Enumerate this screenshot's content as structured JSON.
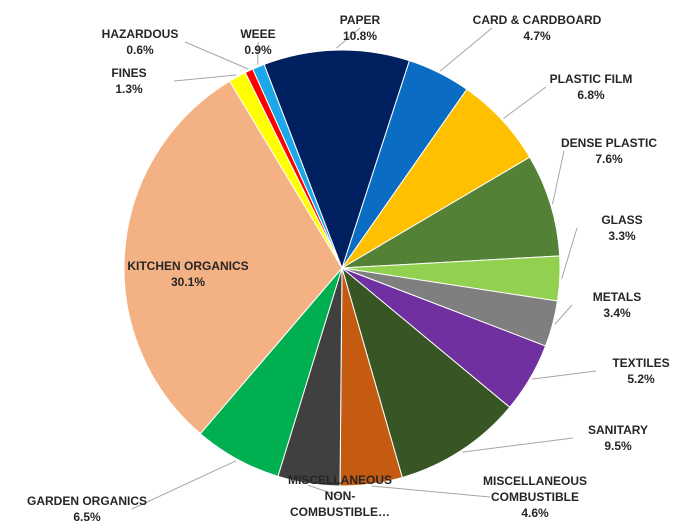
{
  "chart_data": {
    "type": "pie",
    "title": "",
    "start_angle_deg": 18,
    "direction": "clockwise",
    "slices": [
      {
        "name": "CARD & CARDBOARD",
        "value": 4.7,
        "label": "4.7%",
        "color": "#0a6cc2"
      },
      {
        "name": "PLASTIC FILM",
        "value": 6.8,
        "label": "6.8%",
        "color": "#ffc000"
      },
      {
        "name": "DENSE PLASTIC",
        "value": 7.6,
        "label": "7.6%",
        "color": "#538135"
      },
      {
        "name": "GLASS",
        "value": 3.3,
        "label": "3.3%",
        "color": "#92d050"
      },
      {
        "name": "METALS",
        "value": 3.4,
        "label": "3.4%",
        "color": "#7f7f7f"
      },
      {
        "name": "TEXTILES",
        "value": 5.2,
        "label": "5.2%",
        "color": "#7030a0"
      },
      {
        "name": "SANITARY",
        "value": 9.5,
        "label": "9.5%",
        "color": "#375623"
      },
      {
        "name": "MISCELLANEOUS COMBUSTIBLE",
        "value": 4.6,
        "label": "4.6%",
        "color": "#c55a11"
      },
      {
        "name": "MISCELLANEOUS NON-COMBUSTIBLE…",
        "value": 4.6,
        "label": "",
        "color": "#404040"
      },
      {
        "name": "GARDEN ORGANICS",
        "value": 6.5,
        "label": "6.5%",
        "color": "#00b050"
      },
      {
        "name": "KITCHEN ORGANICS",
        "value": 30.1,
        "label": "30.1%",
        "color": "#f4b183"
      },
      {
        "name": "FINES",
        "value": 1.3,
        "label": "1.3%",
        "color": "#ffff00"
      },
      {
        "name": "HAZARDOUS",
        "value": 0.6,
        "label": "0.6%",
        "color": "#ff0000"
      },
      {
        "name": "WEEE",
        "value": 0.9,
        "label": "0.9%",
        "color": "#1ca7e8"
      },
      {
        "name": "PAPER",
        "value": 10.8,
        "label": "10.8%",
        "color": "#002060"
      }
    ]
  }
}
